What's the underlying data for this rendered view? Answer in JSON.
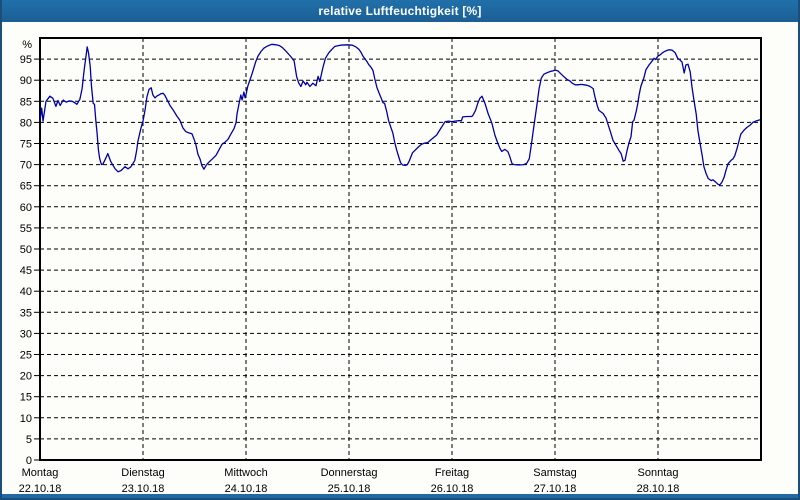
{
  "window": {
    "title": "relative Luftfeuchtigkeit [%]"
  },
  "colors": {
    "titlebar_bg": "#2170AA",
    "titlebar_bg_dark": "#1B5F95",
    "titlebar_text": "#FFFFFF",
    "window_border": "#1B4F79",
    "bottom_strip": "#2069A2",
    "content_bg": "#FDFEFA",
    "axis_frame": "#000000",
    "gridline": "#000000",
    "tick_text": "#000000",
    "series_line": "#0000AA"
  },
  "chart_data": {
    "type": "line",
    "title": "relative Luftfeuchtigkeit [%]",
    "y_unit_label": "%",
    "ylim": [
      0,
      100
    ],
    "ytick_step": 5,
    "ytick_label_max": 95,
    "grid_style": "dashed",
    "legend": "none",
    "x_unit": "hours",
    "xlim_hours": [
      0,
      168
    ],
    "day_tick_interval_hours": 24,
    "categories": [
      {
        "day": "Montag",
        "date": "22.10.18"
      },
      {
        "day": "Dienstag",
        "date": "23.10.18"
      },
      {
        "day": "Mittwoch",
        "date": "24.10.18"
      },
      {
        "day": "Donnerstag",
        "date": "25.10.18"
      },
      {
        "day": "Freitag",
        "date": "26.10.18"
      },
      {
        "day": "Samstag",
        "date": "27.10.18"
      },
      {
        "day": "Sonntag",
        "date": "28.10.18"
      }
    ],
    "series": [
      {
        "name": "relative Luftfeuchtigkeit",
        "unit": "%",
        "points": [
          [
            0,
            80.4
          ],
          [
            0.4,
            83.4
          ],
          [
            0.7,
            80.3
          ],
          [
            1.4,
            85
          ],
          [
            2.3,
            86.2
          ],
          [
            3,
            85.7
          ],
          [
            3.7,
            83.8
          ],
          [
            4.2,
            85.2
          ],
          [
            4.7,
            84
          ],
          [
            5.4,
            85.3
          ],
          [
            6.1,
            84.8
          ],
          [
            6.8,
            85.1
          ],
          [
            7.5,
            85
          ],
          [
            8.2,
            84.6
          ],
          [
            8.6,
            84.3
          ],
          [
            9.3,
            85.5
          ],
          [
            9.8,
            88
          ],
          [
            10.3,
            92.5
          ],
          [
            10.7,
            95.5
          ],
          [
            11,
            97.9
          ],
          [
            11.3,
            96.5
          ],
          [
            11.7,
            93.3
          ],
          [
            12,
            88.5
          ],
          [
            12.4,
            84.5
          ],
          [
            12.7,
            84.3
          ],
          [
            13,
            80.5
          ],
          [
            13.3,
            77.4
          ],
          [
            13.6,
            73.5
          ],
          [
            13.9,
            71.4
          ],
          [
            14.3,
            70
          ],
          [
            14.7,
            70.2
          ],
          [
            15.3,
            71.5
          ],
          [
            15.8,
            72.6
          ],
          [
            16.5,
            70.7
          ],
          [
            17.5,
            69
          ],
          [
            18.2,
            68.3
          ],
          [
            18.9,
            68.6
          ],
          [
            19.8,
            69.5
          ],
          [
            20.5,
            69
          ],
          [
            21.2,
            69.5
          ],
          [
            22.1,
            71
          ],
          [
            22.5,
            73.3
          ],
          [
            22.8,
            75.5
          ],
          [
            23.5,
            78.6
          ],
          [
            24,
            80.3
          ],
          [
            24.5,
            83
          ],
          [
            24.9,
            86
          ],
          [
            25.4,
            87.8
          ],
          [
            25.9,
            88.2
          ],
          [
            26.3,
            86.5
          ],
          [
            26.8,
            85.8
          ],
          [
            27.3,
            86.3
          ],
          [
            27.7,
            86.5
          ],
          [
            28.2,
            86.8
          ],
          [
            28.7,
            86.9
          ],
          [
            29.1,
            86.4
          ],
          [
            29.8,
            85
          ],
          [
            30.3,
            84
          ],
          [
            31,
            83
          ],
          [
            31.9,
            81.5
          ],
          [
            32.6,
            80.5
          ],
          [
            33.3,
            78.7
          ],
          [
            34,
            77.8
          ],
          [
            34.7,
            77.5
          ],
          [
            35.4,
            77.3
          ],
          [
            35.9,
            76
          ],
          [
            36.3,
            74.8
          ],
          [
            36.8,
            72.5
          ],
          [
            37.3,
            71.3
          ],
          [
            37.7,
            69.8
          ],
          [
            38.2,
            68.9
          ],
          [
            38.7,
            69.8
          ],
          [
            39.1,
            70.3
          ],
          [
            39.6,
            70.8
          ],
          [
            40.3,
            71.5
          ],
          [
            41,
            72.2
          ],
          [
            41.7,
            73.5
          ],
          [
            42.4,
            74.8
          ],
          [
            43.1,
            75.3
          ],
          [
            43.8,
            76
          ],
          [
            44.5,
            77.3
          ],
          [
            45.2,
            78.5
          ],
          [
            45.7,
            80
          ],
          [
            45.9,
            82
          ],
          [
            46.4,
            84.5
          ],
          [
            46.8,
            86.5
          ],
          [
            47.1,
            85.3
          ],
          [
            47.5,
            87.2
          ],
          [
            47.8,
            85.8
          ],
          [
            48,
            86.5
          ],
          [
            48.4,
            88.5
          ],
          [
            49.4,
            91.5
          ],
          [
            50.3,
            94.5
          ],
          [
            50.8,
            95.7
          ],
          [
            51.5,
            96.8
          ],
          [
            52.2,
            97.6
          ],
          [
            53,
            98.1
          ],
          [
            54,
            98.5
          ],
          [
            55,
            98.4
          ],
          [
            55.8,
            98.2
          ],
          [
            56.5,
            97.7
          ],
          [
            57.2,
            97
          ],
          [
            57.9,
            96.2
          ],
          [
            58.5,
            95.5
          ],
          [
            59.2,
            94.6
          ],
          [
            59.8,
            90.9
          ],
          [
            60.3,
            89.3
          ],
          [
            60.8,
            88.5
          ],
          [
            61.3,
            89.8
          ],
          [
            61.9,
            88.9
          ],
          [
            62.2,
            89.5
          ],
          [
            62.9,
            88.5
          ],
          [
            63.6,
            89.3
          ],
          [
            64.3,
            88.7
          ],
          [
            64.8,
            90.9
          ],
          [
            65.2,
            89.7
          ],
          [
            65.9,
            92.9
          ],
          [
            66.5,
            95.2
          ],
          [
            67.3,
            96.5
          ],
          [
            68,
            97.3
          ],
          [
            68.7,
            98
          ],
          [
            70,
            98.3
          ],
          [
            71.5,
            98.4
          ],
          [
            72.8,
            98.3
          ],
          [
            73.6,
            97.9
          ],
          [
            74.3,
            97.3
          ],
          [
            74.8,
            96.6
          ],
          [
            75.2,
            95.8
          ],
          [
            75.7,
            95.1
          ],
          [
            76.2,
            94.4
          ],
          [
            76.6,
            93.7
          ],
          [
            77.1,
            93.1
          ],
          [
            77.6,
            92.3
          ],
          [
            78,
            90.3
          ],
          [
            78.5,
            88.3
          ],
          [
            79,
            87
          ],
          [
            79.4,
            86
          ],
          [
            79.9,
            84.7
          ],
          [
            80.3,
            84.5
          ],
          [
            80.8,
            82.5
          ],
          [
            81.2,
            80.5
          ],
          [
            81.7,
            79
          ],
          [
            82.2,
            77.5
          ],
          [
            82.6,
            75.5
          ],
          [
            83.1,
            73.5
          ],
          [
            83.6,
            71.8
          ],
          [
            84,
            70.5
          ],
          [
            84.5,
            69.9
          ],
          [
            85.1,
            69.8
          ],
          [
            85.6,
            70
          ],
          [
            86.1,
            71
          ],
          [
            86.8,
            72.8
          ],
          [
            87.5,
            73.5
          ],
          [
            88.2,
            74.2
          ],
          [
            88.9,
            74.8
          ],
          [
            89.6,
            75.1
          ],
          [
            90.3,
            75.2
          ],
          [
            91,
            75.8
          ],
          [
            91.7,
            76.4
          ],
          [
            92.4,
            77
          ],
          [
            93.2,
            78.3
          ],
          [
            94.4,
            80.2
          ],
          [
            95.2,
            80.3
          ],
          [
            96,
            80.2
          ],
          [
            96.7,
            80.3
          ],
          [
            97.6,
            80.4
          ],
          [
            98.2,
            80.4
          ],
          [
            98.5,
            81.3
          ],
          [
            99.5,
            81.4
          ],
          [
            100.6,
            81.4
          ],
          [
            100.9,
            81.7
          ],
          [
            101.5,
            82.9
          ],
          [
            102,
            84.5
          ],
          [
            102.5,
            85.7
          ],
          [
            103,
            86.2
          ],
          [
            103.7,
            84.5
          ],
          [
            104.4,
            82.1
          ],
          [
            105.3,
            79.8
          ],
          [
            106,
            77
          ],
          [
            106.7,
            75
          ],
          [
            107.2,
            73.8
          ],
          [
            107.6,
            73.1
          ],
          [
            108.3,
            73.6
          ],
          [
            109,
            73.1
          ],
          [
            109.4,
            72.1
          ],
          [
            110,
            70.2
          ],
          [
            110.5,
            70
          ],
          [
            111.6,
            69.9
          ],
          [
            112.7,
            70
          ],
          [
            113.4,
            70.3
          ],
          [
            114,
            71.4
          ],
          [
            114.6,
            75.5
          ],
          [
            115.1,
            79.3
          ],
          [
            115.5,
            82.1
          ],
          [
            115.9,
            85
          ],
          [
            116.3,
            88
          ],
          [
            116.8,
            90.5
          ],
          [
            117.4,
            91.4
          ],
          [
            118.2,
            91.8
          ],
          [
            119,
            92.1
          ],
          [
            119.5,
            92.2
          ],
          [
            120,
            92.4
          ],
          [
            120.7,
            92.2
          ],
          [
            121.4,
            91.5
          ],
          [
            122.1,
            90.8
          ],
          [
            122.8,
            90.2
          ],
          [
            123.5,
            89.8
          ],
          [
            124,
            89.3
          ],
          [
            124.7,
            88.9
          ],
          [
            125.4,
            88.9
          ],
          [
            126.1,
            89
          ],
          [
            126.8,
            88.9
          ],
          [
            127.5,
            88.8
          ],
          [
            128.2,
            88.5
          ],
          [
            128.9,
            88
          ],
          [
            129.3,
            86.1
          ],
          [
            129.8,
            84.1
          ],
          [
            130.2,
            82.9
          ],
          [
            130.7,
            82.5
          ],
          [
            131.2,
            82.1
          ],
          [
            131.9,
            81
          ],
          [
            132.4,
            79.4
          ],
          [
            132.9,
            77.8
          ],
          [
            133.5,
            75.8
          ],
          [
            134.2,
            74.6
          ],
          [
            134.9,
            73.4
          ],
          [
            135.4,
            72.6
          ],
          [
            135.9,
            70.8
          ],
          [
            136.3,
            71
          ],
          [
            136.8,
            73.4
          ],
          [
            137.2,
            75
          ],
          [
            137.7,
            76.6
          ],
          [
            138.1,
            80.2
          ],
          [
            138.4,
            80.5
          ],
          [
            138.9,
            82.5
          ],
          [
            139.3,
            84.5
          ],
          [
            139.6,
            86.5
          ],
          [
            140,
            88.5
          ],
          [
            140.7,
            90.5
          ],
          [
            141.2,
            92.5
          ],
          [
            141.9,
            93.6
          ],
          [
            142.6,
            94.5
          ],
          [
            143.1,
            95.2
          ],
          [
            143.4,
            94.9
          ],
          [
            143.7,
            95.3
          ],
          [
            144,
            95.7
          ],
          [
            144.5,
            96
          ],
          [
            145.2,
            96.6
          ],
          [
            145.9,
            97
          ],
          [
            146.6,
            97.2
          ],
          [
            147.3,
            97.1
          ],
          [
            148,
            96.5
          ],
          [
            148.6,
            95.2
          ],
          [
            149.1,
            94.8
          ],
          [
            149.6,
            94.3
          ],
          [
            150.1,
            91.7
          ],
          [
            150.5,
            93.6
          ],
          [
            151,
            93.8
          ],
          [
            151.5,
            92
          ],
          [
            151.9,
            88.5
          ],
          [
            152.4,
            85.2
          ],
          [
            152.9,
            82
          ],
          [
            153.3,
            78.1
          ],
          [
            153.8,
            75
          ],
          [
            154.3,
            72.1
          ],
          [
            154.7,
            69.5
          ],
          [
            155.2,
            67.9
          ],
          [
            155.7,
            66.7
          ],
          [
            156.4,
            66.2
          ],
          [
            156.8,
            66.4
          ],
          [
            157.5,
            65.8
          ],
          [
            158,
            65.3
          ],
          [
            158.4,
            65.2
          ],
          [
            158.9,
            65.8
          ],
          [
            159.4,
            67
          ],
          [
            159.8,
            68.5
          ],
          [
            160.3,
            70.2
          ],
          [
            161,
            71
          ],
          [
            161.5,
            71.4
          ],
          [
            161.9,
            72.1
          ],
          [
            162.4,
            73.8
          ],
          [
            162.9,
            75.7
          ],
          [
            163.3,
            77.2
          ],
          [
            164,
            78.1
          ],
          [
            164.7,
            78.8
          ],
          [
            165.4,
            79.3
          ],
          [
            166.1,
            80
          ],
          [
            167,
            80.4
          ],
          [
            167.7,
            80.6
          ]
        ]
      }
    ]
  }
}
